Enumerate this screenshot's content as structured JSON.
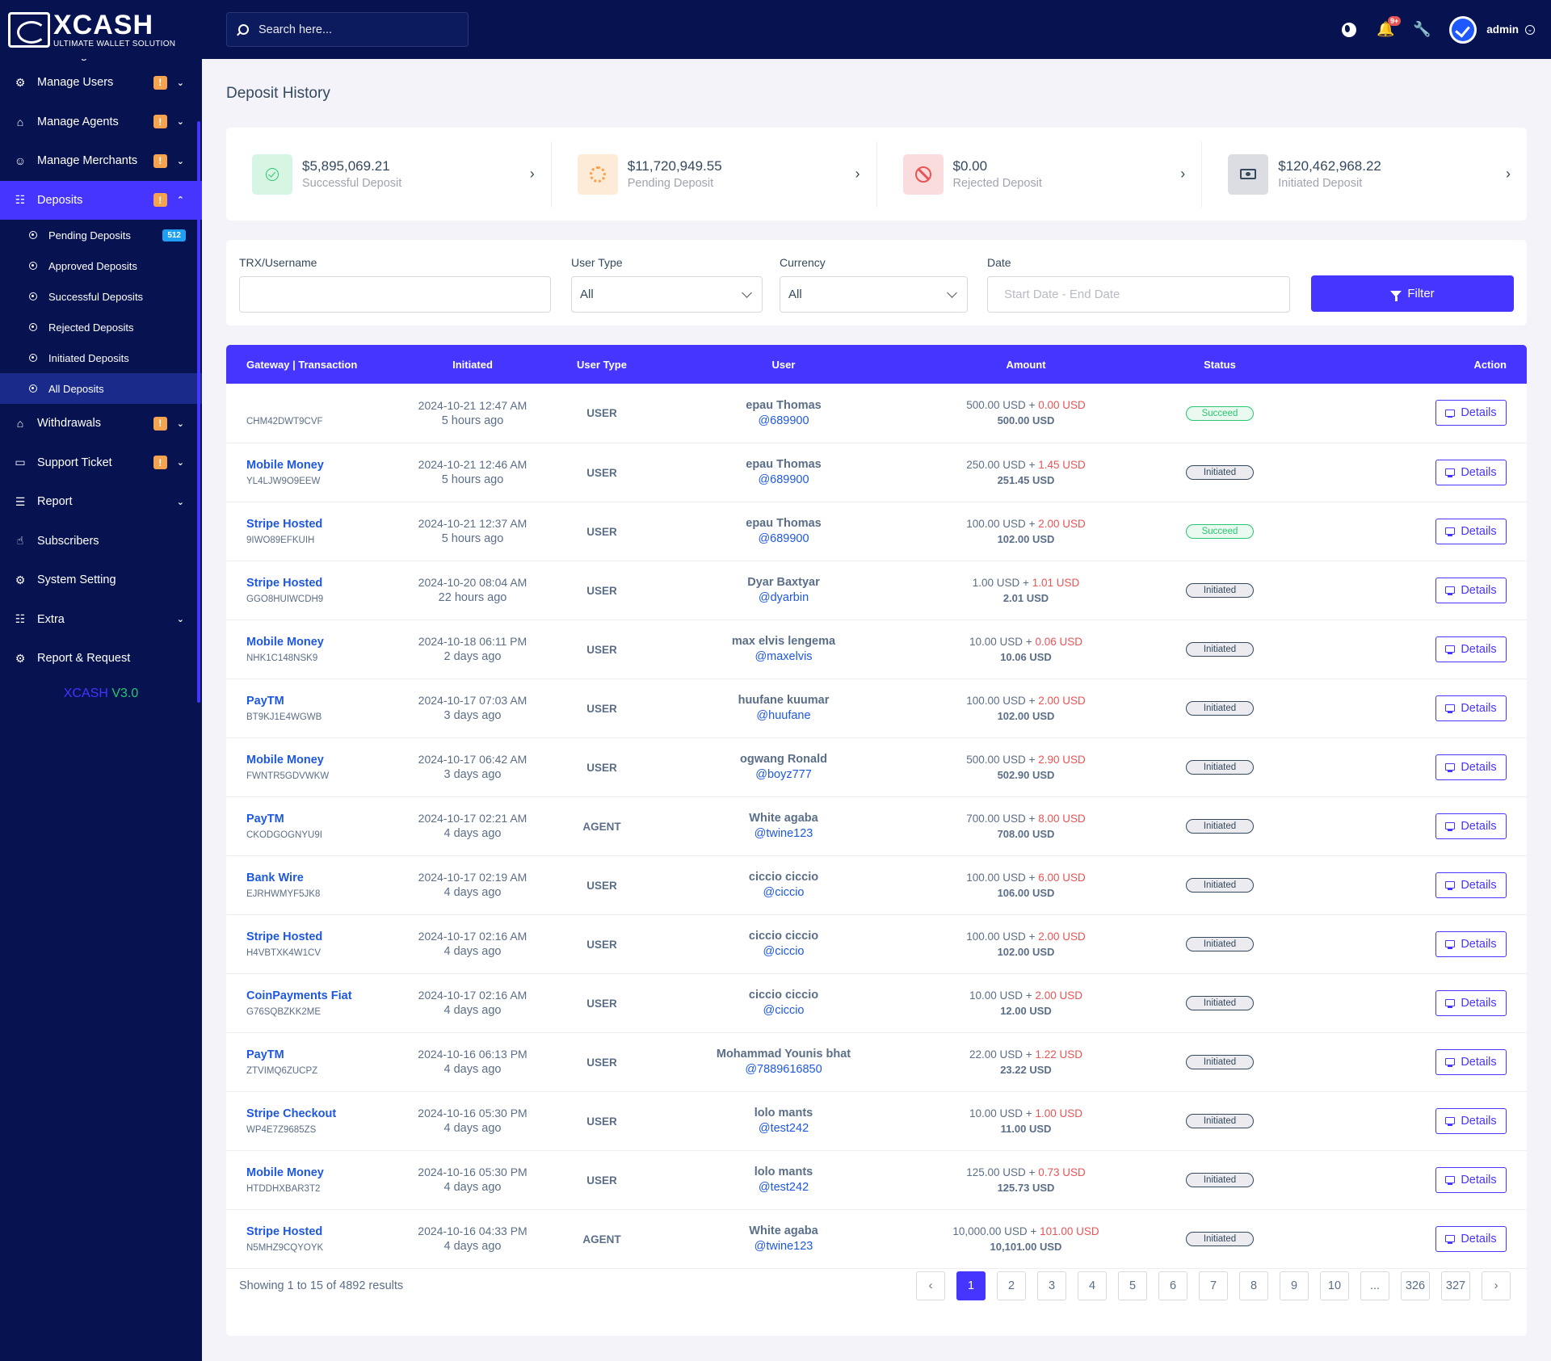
{
  "brand": {
    "name": "XCASH",
    "tagline": "ULTIMATE WALLET SOLUTION"
  },
  "sidebar": {
    "items": [
      {
        "label": "Front Logs",
        "icon": "chart-icon",
        "warn": false,
        "chevron": "down"
      },
      {
        "label": "Manage Users",
        "icon": "users-icon",
        "warn": true,
        "chevron": "down"
      },
      {
        "label": "Manage Agents",
        "icon": "agent-icon",
        "warn": true,
        "chevron": "down"
      },
      {
        "label": "Manage Merchants",
        "icon": "merchant-icon",
        "warn": true,
        "chevron": "down"
      },
      {
        "label": "Deposits",
        "icon": "deposit-icon",
        "warn": true,
        "chevron": "up",
        "active": true
      },
      {
        "label": "Withdrawals",
        "icon": "bank-icon",
        "warn": true,
        "chevron": "down"
      },
      {
        "label": "Support Ticket",
        "icon": "ticket-icon",
        "warn": true,
        "chevron": "down"
      },
      {
        "label": "Report",
        "icon": "list-icon",
        "warn": false,
        "chevron": "down"
      },
      {
        "label": "Subscribers",
        "icon": "thumbs-up-icon",
        "warn": false,
        "chevron": ""
      },
      {
        "label": "System Setting",
        "icon": "settings-icon",
        "warn": false,
        "chevron": ""
      },
      {
        "label": "Extra",
        "icon": "server-icon",
        "warn": false,
        "chevron": "down"
      },
      {
        "label": "Report & Request",
        "icon": "bug-icon",
        "warn": false,
        "chevron": ""
      }
    ],
    "deposit_submenu": [
      {
        "label": "Pending Deposits",
        "badge": "512"
      },
      {
        "label": "Approved Deposits"
      },
      {
        "label": "Successful Deposits"
      },
      {
        "label": "Rejected Deposits"
      },
      {
        "label": "Initiated Deposits"
      },
      {
        "label": "All Deposits",
        "active": true
      }
    ],
    "warn_symbol": "!",
    "version_name": "XCASH",
    "version_number": "V3.0"
  },
  "topbar": {
    "search_placeholder": "Search here...",
    "notification_count": "9+",
    "admin_name": "admin"
  },
  "page": {
    "title": "Deposit History"
  },
  "stats": [
    {
      "value": "$5,895,069.21",
      "label": "Successful Deposit",
      "icon": "check-circle-icon",
      "color": "#28c76f"
    },
    {
      "value": "$11,720,949.55",
      "label": "Pending Deposit",
      "icon": "spinner-icon",
      "color": "#ff9f43"
    },
    {
      "value": "$0.00",
      "label": "Rejected Deposit",
      "icon": "ban-icon",
      "color": "#ea5455"
    },
    {
      "value": "$120,462,968.22",
      "label": "Initiated Deposit",
      "icon": "money-icon",
      "color": "#34495e"
    }
  ],
  "filters": {
    "trx_label": "TRX/Username",
    "trx_value": "",
    "user_type_label": "User Type",
    "user_type_value": "All",
    "currency_label": "Currency",
    "currency_value": "All",
    "date_label": "Date",
    "date_placeholder": "Start Date - End Date",
    "filter_button": "Filter"
  },
  "table": {
    "headers": [
      "Gateway | Transaction",
      "Initiated",
      "User Type",
      "User",
      "Amount",
      "Status",
      "Action"
    ],
    "action_label": "Details",
    "rows": [
      {
        "gateway": "",
        "trx": "CHM42DWT9CVF",
        "date": "2024-10-21 12:47 AM",
        "ago": "5 hours ago",
        "user_type": "USER",
        "user": "epau Thomas",
        "handle": "@689900",
        "amount": "500.00 USD",
        "charge": "0.00 USD",
        "total": "500.00 USD",
        "status": "Succeed"
      },
      {
        "gateway": "Mobile Money",
        "trx": "YL4LJW9O9EEW",
        "date": "2024-10-21 12:46 AM",
        "ago": "5 hours ago",
        "user_type": "USER",
        "user": "epau Thomas",
        "handle": "@689900",
        "amount": "250.00 USD",
        "charge": "1.45 USD",
        "total": "251.45 USD",
        "status": "Initiated"
      },
      {
        "gateway": "Stripe Hosted",
        "trx": "9IWO89EFKUIH",
        "date": "2024-10-21 12:37 AM",
        "ago": "5 hours ago",
        "user_type": "USER",
        "user": "epau Thomas",
        "handle": "@689900",
        "amount": "100.00 USD",
        "charge": "2.00 USD",
        "total": "102.00 USD",
        "status": "Succeed"
      },
      {
        "gateway": "Stripe Hosted",
        "trx": "GGO8HUIWCDH9",
        "date": "2024-10-20 08:04 AM",
        "ago": "22 hours ago",
        "user_type": "USER",
        "user": "Dyar Baxtyar",
        "handle": "@dyarbin",
        "amount": "1.00 USD",
        "charge": "1.01 USD",
        "total": "2.01 USD",
        "status": "Initiated"
      },
      {
        "gateway": "Mobile Money",
        "trx": "NHK1C148NSK9",
        "date": "2024-10-18 06:11 PM",
        "ago": "2 days ago",
        "user_type": "USER",
        "user": "max elvis lengema",
        "handle": "@maxelvis",
        "amount": "10.00 USD",
        "charge": "0.06 USD",
        "total": "10.06 USD",
        "status": "Initiated"
      },
      {
        "gateway": "PayTM",
        "trx": "BT9KJ1E4WGWB",
        "date": "2024-10-17 07:03 AM",
        "ago": "3 days ago",
        "user_type": "USER",
        "user": "huufane kuumar",
        "handle": "@huufane",
        "amount": "100.00 USD",
        "charge": "2.00 USD",
        "total": "102.00 USD",
        "status": "Initiated"
      },
      {
        "gateway": "Mobile Money",
        "trx": "FWNTR5GDVWKW",
        "date": "2024-10-17 06:42 AM",
        "ago": "3 days ago",
        "user_type": "USER",
        "user": "ogwang Ronald",
        "handle": "@boyz777",
        "amount": "500.00 USD",
        "charge": "2.90 USD",
        "total": "502.90 USD",
        "status": "Initiated"
      },
      {
        "gateway": "PayTM",
        "trx": "CKODGOGNYU9I",
        "date": "2024-10-17 02:21 AM",
        "ago": "4 days ago",
        "user_type": "AGENT",
        "user": "White agaba",
        "handle": "@twine123",
        "amount": "700.00 USD",
        "charge": "8.00 USD",
        "total": "708.00 USD",
        "status": "Initiated"
      },
      {
        "gateway": "Bank Wire",
        "trx": "EJRHWMYF5JK8",
        "date": "2024-10-17 02:19 AM",
        "ago": "4 days ago",
        "user_type": "USER",
        "user": "ciccio ciccio",
        "handle": "@ciccio",
        "amount": "100.00 USD",
        "charge": "6.00 USD",
        "total": "106.00 USD",
        "status": "Initiated"
      },
      {
        "gateway": "Stripe Hosted",
        "trx": "H4VBTXK4W1CV",
        "date": "2024-10-17 02:16 AM",
        "ago": "4 days ago",
        "user_type": "USER",
        "user": "ciccio ciccio",
        "handle": "@ciccio",
        "amount": "100.00 USD",
        "charge": "2.00 USD",
        "total": "102.00 USD",
        "status": "Initiated"
      },
      {
        "gateway": "CoinPayments Fiat",
        "trx": "G76SQBZKK2ME",
        "date": "2024-10-17 02:16 AM",
        "ago": "4 days ago",
        "user_type": "USER",
        "user": "ciccio ciccio",
        "handle": "@ciccio",
        "amount": "10.00 USD",
        "charge": "2.00 USD",
        "total": "12.00 USD",
        "status": "Initiated"
      },
      {
        "gateway": "PayTM",
        "trx": "ZTVIMQ6ZUCPZ",
        "date": "2024-10-16 06:13 PM",
        "ago": "4 days ago",
        "user_type": "USER",
        "user": "Mohammad Younis bhat",
        "handle": "@7889616850",
        "amount": "22.00 USD",
        "charge": "1.22 USD",
        "total": "23.22 USD",
        "status": "Initiated"
      },
      {
        "gateway": "Stripe Checkout",
        "trx": "WP4E7Z9685ZS",
        "date": "2024-10-16 05:30 PM",
        "ago": "4 days ago",
        "user_type": "USER",
        "user": "lolo mants",
        "handle": "@test242",
        "amount": "10.00 USD",
        "charge": "1.00 USD",
        "total": "11.00 USD",
        "status": "Initiated"
      },
      {
        "gateway": "Mobile Money",
        "trx": "HTDDHXBAR3T2",
        "date": "2024-10-16 05:30 PM",
        "ago": "4 days ago",
        "user_type": "USER",
        "user": "lolo mants",
        "handle": "@test242",
        "amount": "125.00 USD",
        "charge": "0.73 USD",
        "total": "125.73 USD",
        "status": "Initiated"
      },
      {
        "gateway": "Stripe Hosted",
        "trx": "N5MHZ9CQYOYK",
        "date": "2024-10-16 04:33 PM",
        "ago": "4 days ago",
        "user_type": "AGENT",
        "user": "White agaba",
        "handle": "@twine123",
        "amount": "10,000.00 USD",
        "charge": "101.00 USD",
        "total": "10,101.00 USD",
        "status": "Initiated"
      }
    ]
  },
  "pagination": {
    "summary": "Showing 1 to 15 of 4892 results",
    "prev": "‹",
    "next": "›",
    "pages": [
      "1",
      "2",
      "3",
      "4",
      "5",
      "6",
      "7",
      "8",
      "9",
      "10",
      "...",
      "326",
      "327"
    ],
    "current": "1"
  }
}
